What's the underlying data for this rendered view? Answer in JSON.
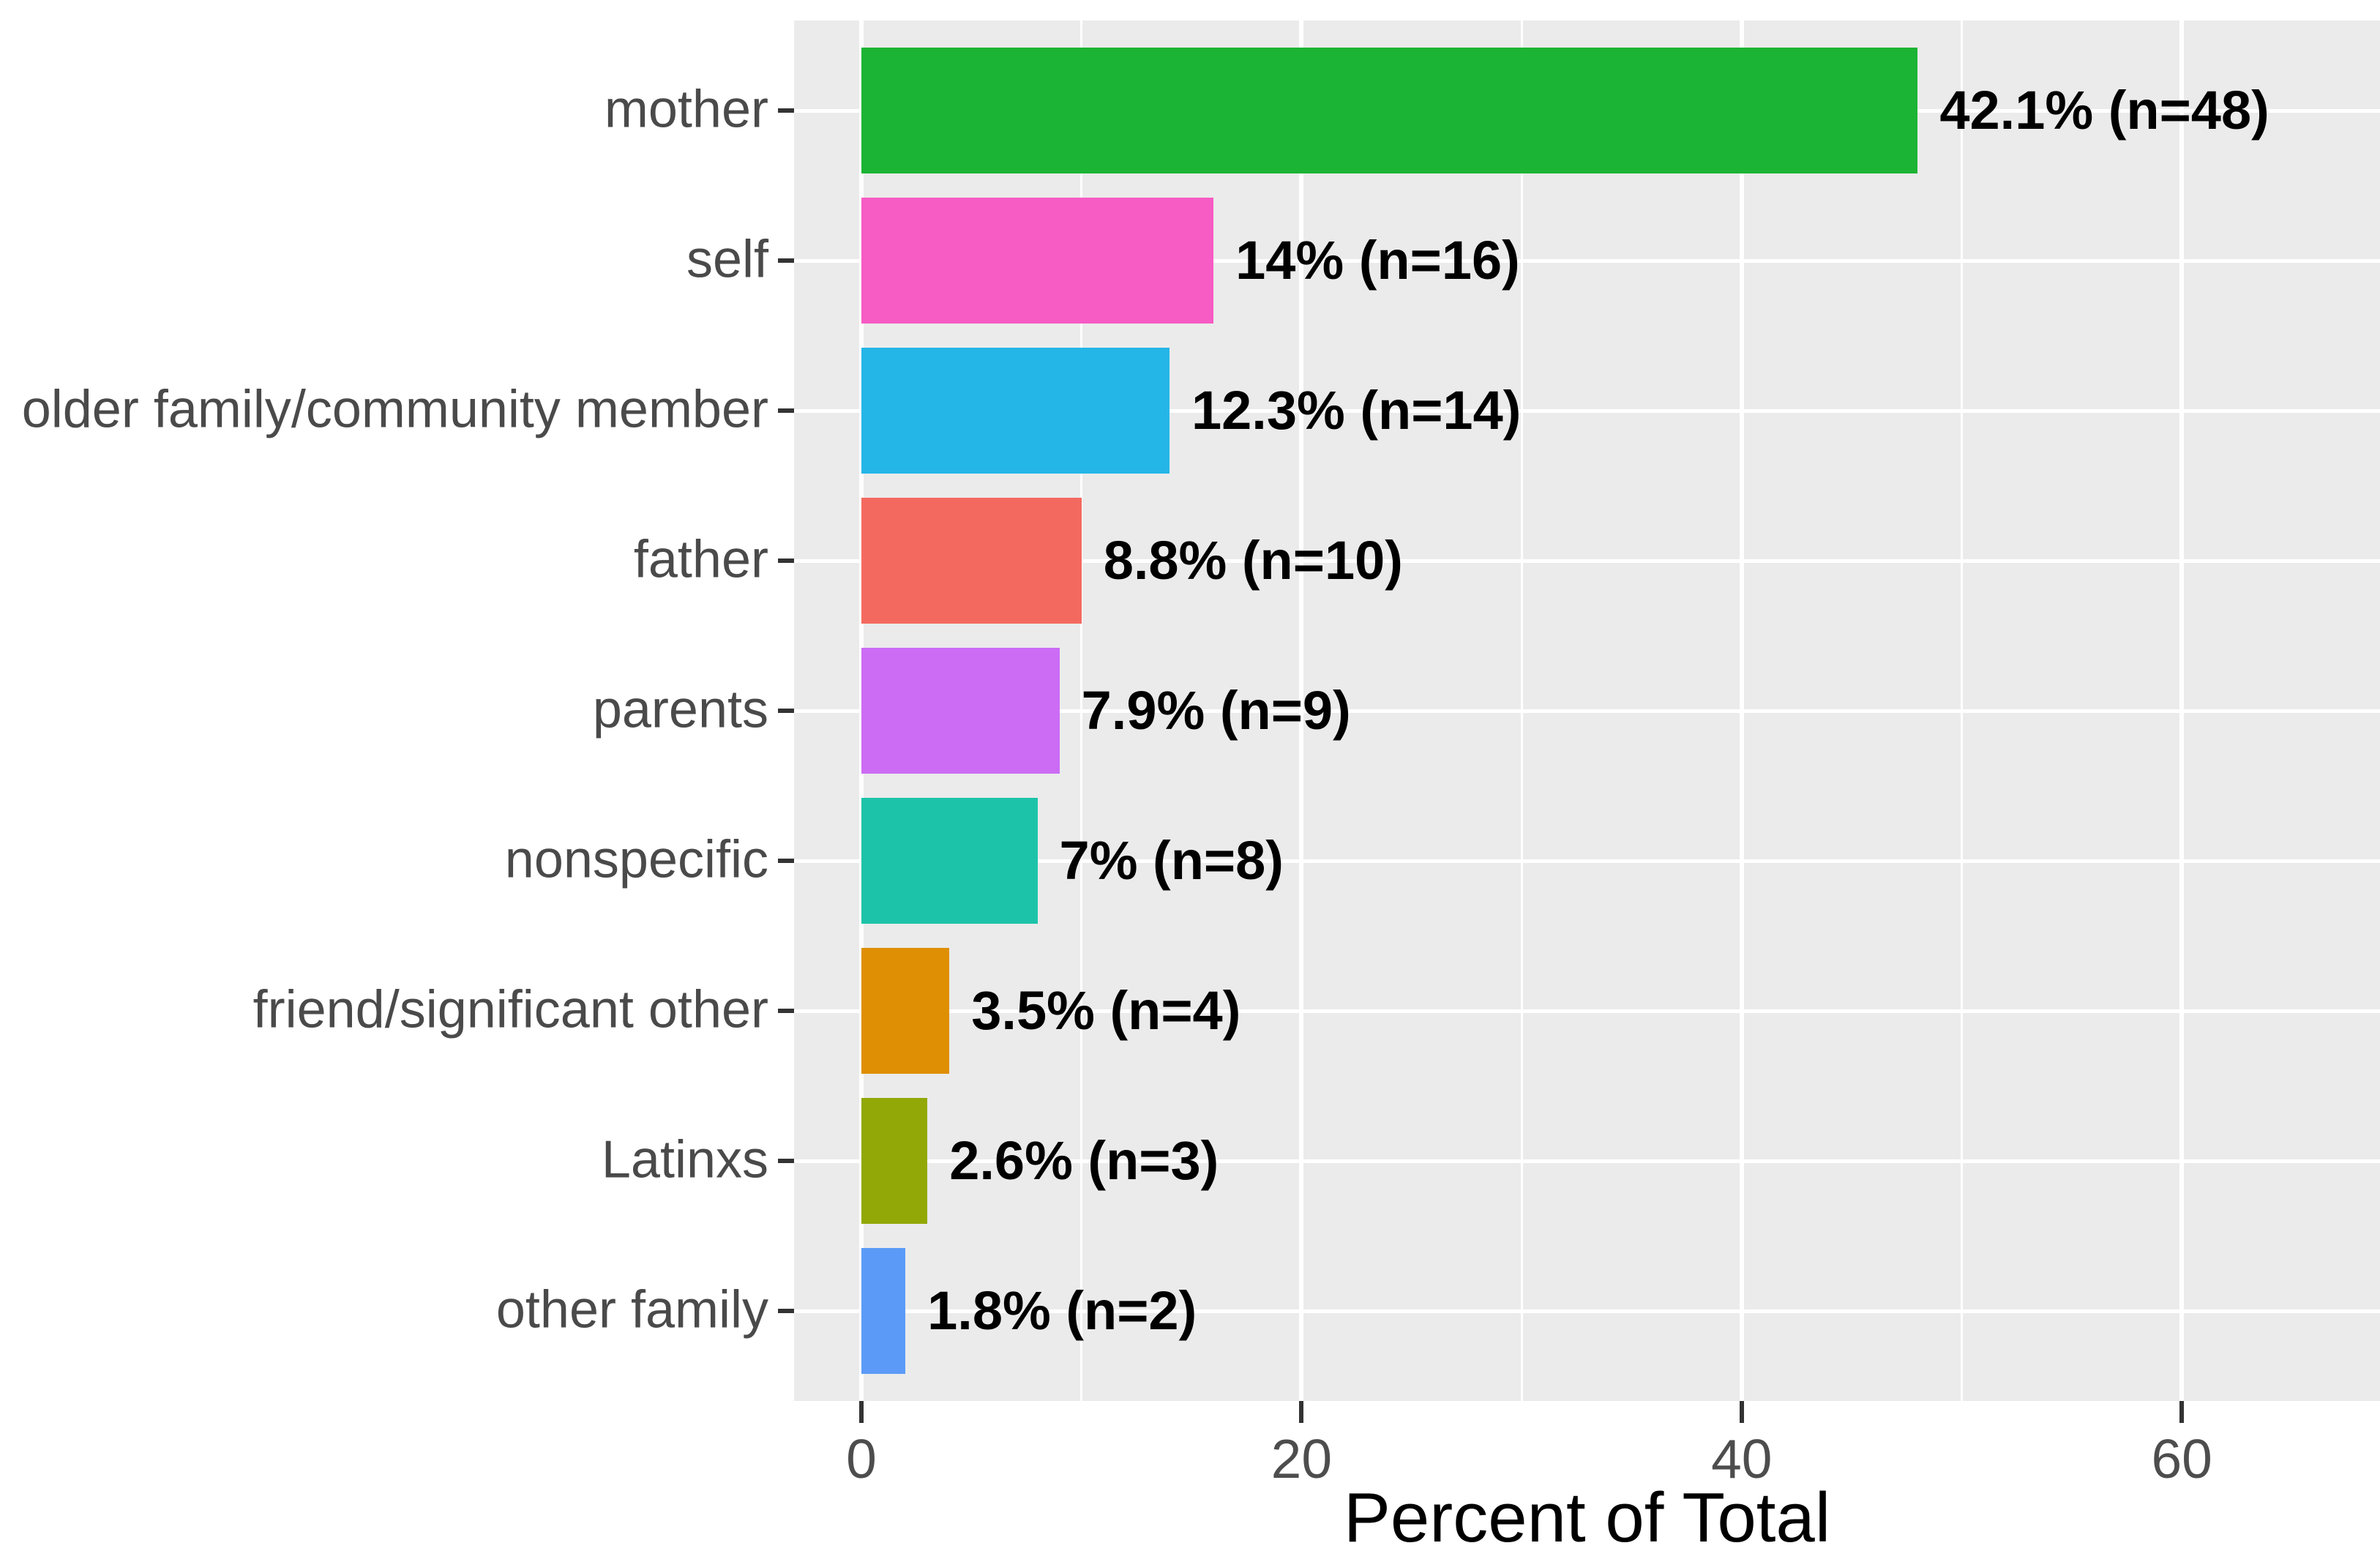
{
  "chart_data": {
    "type": "bar",
    "orientation": "horizontal",
    "title": "",
    "xlabel": "Percent of Total",
    "ylabel": "",
    "categories": [
      "mother",
      "self",
      "older family/community member",
      "father",
      "parents",
      "nonspecific",
      "friend/significant other",
      "Latinxs",
      "other family"
    ],
    "series": [
      {
        "name": "count",
        "values": [
          48,
          16,
          14,
          10,
          9,
          8,
          4,
          3,
          2
        ]
      },
      {
        "name": "percent_of_total",
        "values": [
          42.1,
          14.0,
          12.3,
          8.8,
          7.9,
          7.0,
          3.5,
          2.6,
          1.8
        ]
      }
    ],
    "bar_labels": [
      "42.1% (n=48)",
      "14% (n=16)",
      "12.3% (n=14)",
      "8.8% (n=10)",
      "7.9% (n=9)",
      "7% (n=8)",
      "3.5% (n=4)",
      "2.6% (n=3)",
      "1.8% (n=2)"
    ],
    "bar_colors": [
      "#1CB434",
      "#F75BC4",
      "#25B6E8",
      "#F4695F",
      "#CC6CF5",
      "#1DC3A9",
      "#DF8F04",
      "#92A806",
      "#5B9BF7"
    ],
    "x_ticks": [
      0,
      20,
      40,
      60
    ],
    "x_tick_labels": [
      "0",
      "20",
      "40",
      "60"
    ],
    "x_minor_ticks": [
      10,
      30,
      50
    ],
    "xlim": [
      -3.1,
      68.9
    ],
    "grid": "on",
    "legend_position": "none"
  },
  "style_colors": {
    "panel_background": "#EBEBEB",
    "gridline": "#FFFFFF",
    "tick_mark": "#333333",
    "axis_tick_text": "#4D4D4D",
    "category_text": "#4A4A4A",
    "value_text": "#000000",
    "axis_title_text": "#000000"
  }
}
